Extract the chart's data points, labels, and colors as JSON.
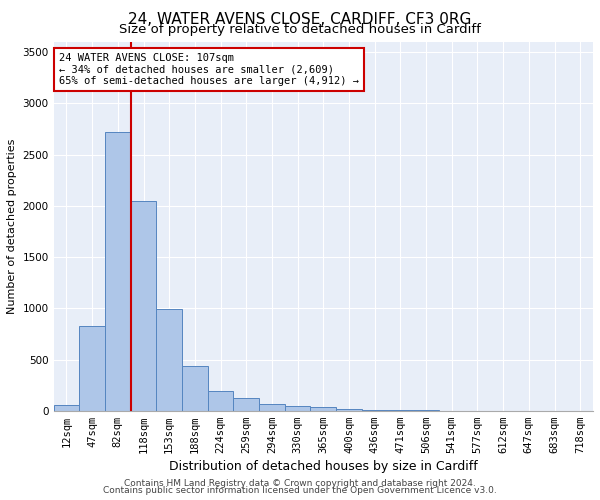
{
  "title1": "24, WATER AVENS CLOSE, CARDIFF, CF3 0RG",
  "title2": "Size of property relative to detached houses in Cardiff",
  "xlabel": "Distribution of detached houses by size in Cardiff",
  "ylabel": "Number of detached properties",
  "categories": [
    "12sqm",
    "47sqm",
    "82sqm",
    "118sqm",
    "153sqm",
    "188sqm",
    "224sqm",
    "259sqm",
    "294sqm",
    "330sqm",
    "365sqm",
    "400sqm",
    "436sqm",
    "471sqm",
    "506sqm",
    "541sqm",
    "577sqm",
    "612sqm",
    "647sqm",
    "683sqm",
    "718sqm"
  ],
  "values": [
    55,
    830,
    2720,
    2050,
    990,
    440,
    195,
    120,
    65,
    50,
    35,
    18,
    10,
    5,
    3,
    2,
    1,
    1,
    0,
    0,
    0
  ],
  "bar_color": "#aec6e8",
  "bar_edge_color": "#5585c0",
  "vline_color": "#cc0000",
  "ylim": [
    0,
    3600
  ],
  "yticks": [
    0,
    500,
    1000,
    1500,
    2000,
    2500,
    3000,
    3500
  ],
  "annotation_text": "24 WATER AVENS CLOSE: 107sqm\n← 34% of detached houses are smaller (2,609)\n65% of semi-detached houses are larger (4,912) →",
  "annotation_box_color": "#ffffff",
  "annotation_box_edgecolor": "#cc0000",
  "footer1": "Contains HM Land Registry data © Crown copyright and database right 2024.",
  "footer2": "Contains public sector information licensed under the Open Government Licence v3.0.",
  "plot_background": "#e8eef8",
  "title1_fontsize": 11,
  "title2_fontsize": 9.5,
  "xlabel_fontsize": 9,
  "ylabel_fontsize": 8,
  "tick_fontsize": 7.5,
  "footer_fontsize": 6.5
}
